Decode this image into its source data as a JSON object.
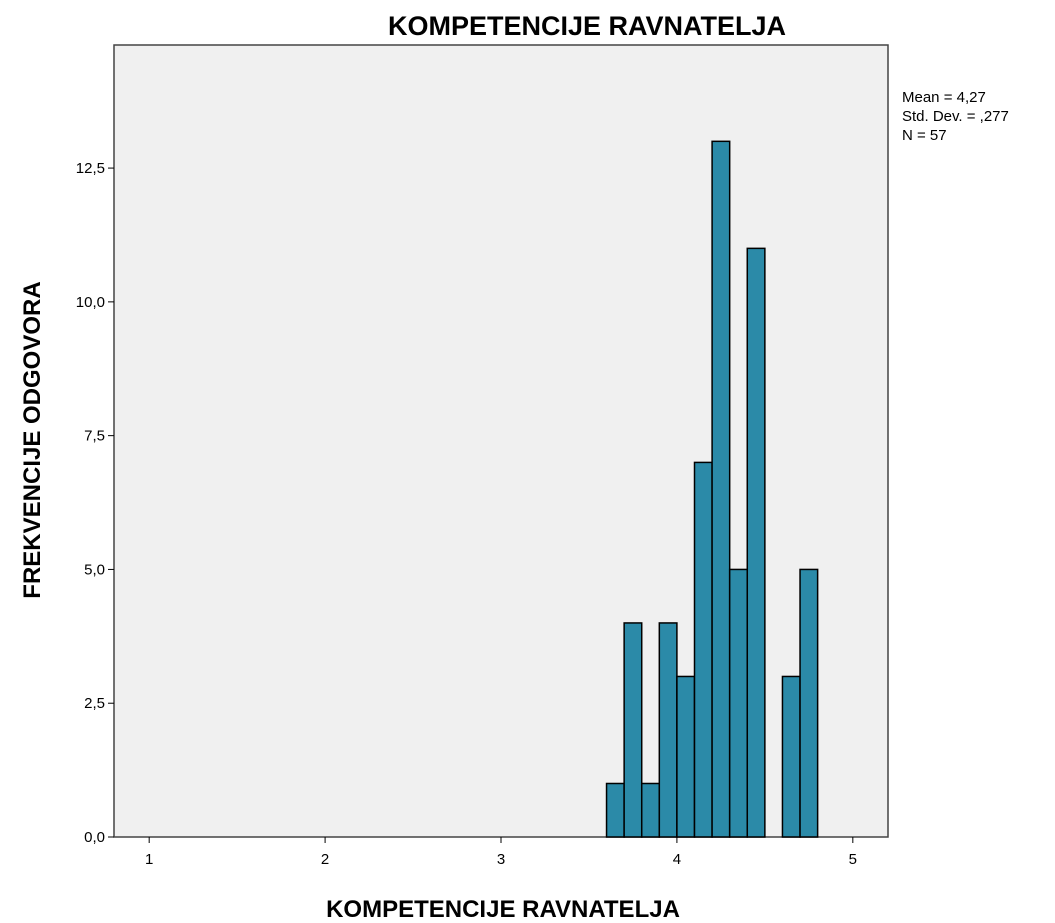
{
  "chart_data": {
    "type": "bar",
    "title": "KOMPETENCIJE RAVNATELJA",
    "xlabel": "KOMPETENCIJE RAVNATELJA",
    "ylabel": "FREKVENCIJE ODGOVORA",
    "xlim": [
      0.8,
      5.2
    ],
    "ylim": [
      0,
      14.8
    ],
    "x_ticks": [
      1,
      2,
      3,
      4,
      5
    ],
    "x_tick_labels": [
      "1",
      "2",
      "3",
      "4",
      "5"
    ],
    "y_ticks": [
      0,
      2.5,
      5,
      7.5,
      10,
      12.5
    ],
    "y_tick_labels": [
      "0,0",
      "2,5",
      "5,0",
      "7,5",
      "10,0",
      "12,5"
    ],
    "bin_width": 0.1,
    "bins": [
      {
        "x": 3.6,
        "value": 1
      },
      {
        "x": 3.7,
        "value": 4
      },
      {
        "x": 3.8,
        "value": 1
      },
      {
        "x": 3.9,
        "value": 4
      },
      {
        "x": 4.0,
        "value": 3
      },
      {
        "x": 4.1,
        "value": 7
      },
      {
        "x": 4.2,
        "value": 13
      },
      {
        "x": 4.3,
        "value": 5
      },
      {
        "x": 4.4,
        "value": 11
      },
      {
        "x": 4.5,
        "value": 0
      },
      {
        "x": 4.6,
        "value": 3
      },
      {
        "x": 4.7,
        "value": 5
      }
    ],
    "grid": false,
    "colors": {
      "bar": "#2b8aa8",
      "bar_stroke": "#000000",
      "plot_bg": "#f0f0f0"
    },
    "stats": [
      "Mean = 4,27",
      "Std. Dev. = ,277",
      "N = 57"
    ]
  }
}
